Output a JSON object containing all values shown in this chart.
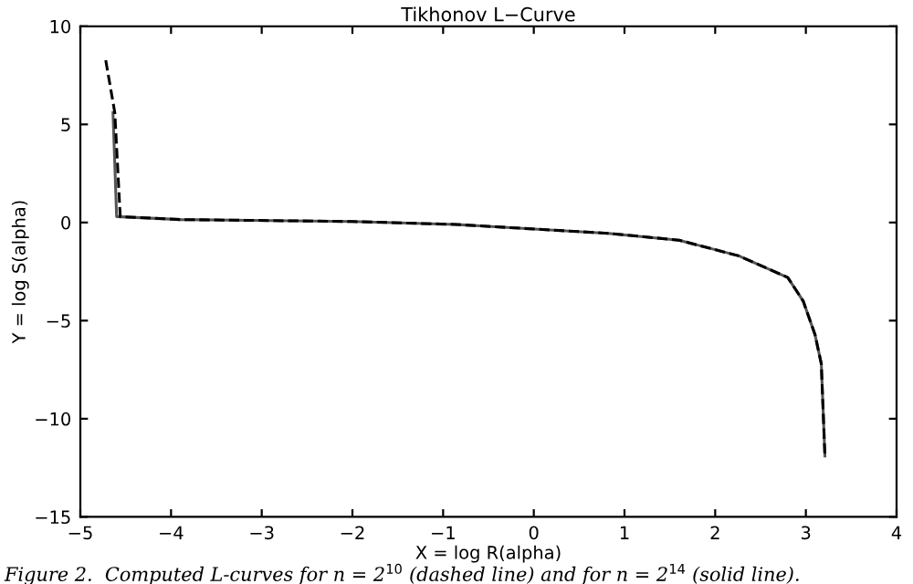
{
  "chart_data": {
    "type": "line",
    "title": "Tikhonov L−Curve",
    "xlabel": "X = log R(alpha)",
    "ylabel": "Y = log S(alpha)",
    "xlim": [
      -5,
      4
    ],
    "xticks": [
      {
        "value": -5,
        "label": "−5"
      },
      {
        "value": -4,
        "label": "−4"
      },
      {
        "value": -3,
        "label": "−3"
      },
      {
        "value": -2,
        "label": "−2"
      },
      {
        "value": -1,
        "label": "−1"
      },
      0,
      1,
      2,
      3,
      4
    ],
    "ylim": [
      -15,
      10
    ],
    "yticks": [
      {
        "value": -15,
        "label": "−15"
      },
      {
        "value": -10,
        "label": "−10"
      },
      {
        "value": -5,
        "label": "−5"
      },
      0,
      5,
      10
    ],
    "grid": false,
    "legend": false,
    "marker": "none",
    "series": [
      {
        "color": "#555555",
        "line_style": "solid",
        "x": [
          -4.64,
          -4.6,
          -3.9,
          -2.0,
          -0.86,
          0.82,
          1.6,
          2.26,
          2.8,
          2.97,
          3.1,
          3.17,
          3.21
        ],
        "values": [
          5.6,
          0.3,
          0.15,
          0.05,
          -0.1,
          -0.55,
          -0.9,
          -1.7,
          -2.8,
          -4.0,
          -5.7,
          -7.2,
          -11.9
        ]
      },
      {
        "color": "#000000",
        "line_style": "dashed",
        "x": [
          -4.72,
          -4.62,
          -4.56,
          -3.9,
          -2.0,
          -0.86,
          0.82,
          1.6,
          2.26,
          2.8,
          2.97,
          3.1,
          3.17,
          3.21
        ],
        "values": [
          8.27,
          5.6,
          0.3,
          0.15,
          0.05,
          -0.1,
          -0.55,
          -0.9,
          -1.7,
          -2.8,
          -4.0,
          -5.7,
          -7.2,
          -11.9
        ]
      }
    ],
    "annotations": [
      "Figure 2.  Computed L-curves for n = 2$^{10}$ (dashed line) and for n = 2$^{14}$ (solid line)."
    ]
  }
}
